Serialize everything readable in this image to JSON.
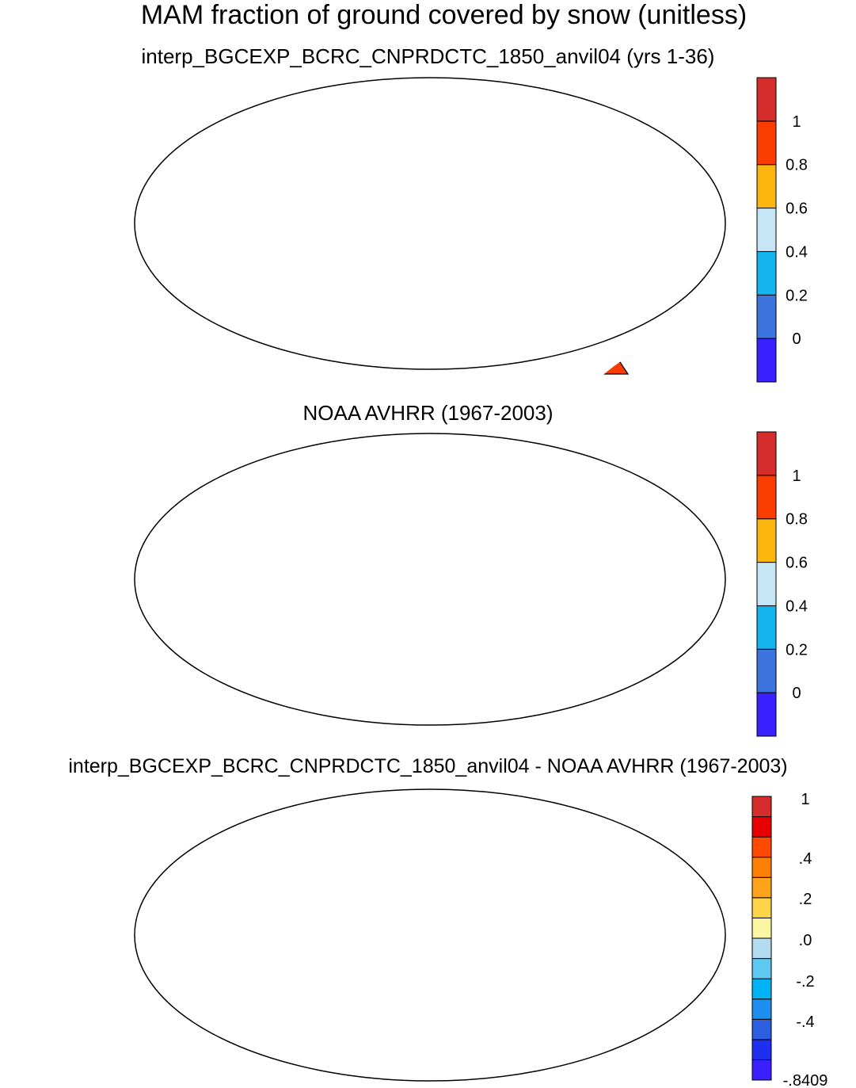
{
  "title": "MAM fraction of ground covered by snow (unitless)",
  "panels": [
    {
      "title": "interp_BGCEXP_BCRC_CNPRDCTC_1850_anvil04 (yrs 1-36)",
      "colorbar": {
        "colors": [
          "#3a1fff",
          "#3d73dc",
          "#14b4ee",
          "#c6e6f5",
          "#fbb60f",
          "#fb3c00",
          "#d52d2b"
        ],
        "labels": [
          "0",
          "0.2",
          "0.4",
          "0.6",
          "0.8",
          "1"
        ]
      }
    },
    {
      "title": "NOAA AVHRR (1967-2003)",
      "colorbar": {
        "colors": [
          "#3a1fff",
          "#3d73dc",
          "#14b4ee",
          "#c6e6f5",
          "#fbb60f",
          "#fb3c00",
          "#d52d2b"
        ],
        "labels": [
          "0",
          "0.2",
          "0.4",
          "0.6",
          "0.8",
          "1"
        ]
      }
    },
    {
      "title": "interp_BGCEXP_BCRC_CNPRDCTC_1850_anvil04 - NOAA AVHRR (1967-2003)",
      "colorbar": {
        "colors": [
          "#3a1fff",
          "#1f2ff0",
          "#2e5ee0",
          "#1e8ef0",
          "#00b3f5",
          "#5fc8f0",
          "#b4dcf0",
          "#fbf6a3",
          "#ffd34a",
          "#ffa41a",
          "#ff7f00",
          "#ff4a00",
          "#e60000",
          "#d52d2b"
        ],
        "labels": [
          "1",
          ".4",
          ".2",
          ".0",
          "-.2",
          "-.4",
          "-.8409"
        ]
      }
    }
  ]
}
